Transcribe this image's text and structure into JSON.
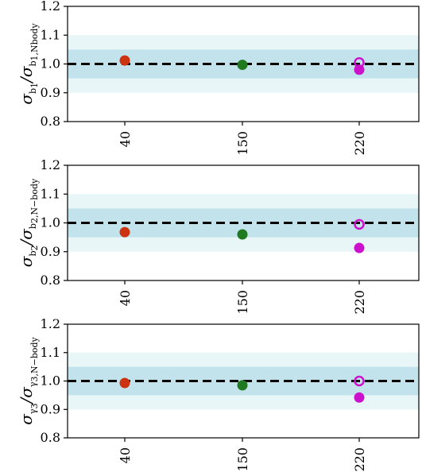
{
  "chart_data": [
    {
      "type": "scatter",
      "categories": [
        "40",
        "150",
        "220"
      ],
      "ylabel": {
        "num_sym": "σ",
        "num_sub": "b",
        "num_subsub": "1",
        "den_sym": "σ",
        "den_sub": "b",
        "den_subsub": "1,Nbody"
      },
      "ylim": [
        0.8,
        1.2
      ],
      "yticks": [
        "0.8",
        "0.9",
        "1.0",
        "1.1",
        "1.2"
      ],
      "points": [
        {
          "category": "40",
          "y": 1.012,
          "color": "#cc3311",
          "filled": true
        },
        {
          "category": "150",
          "y": 0.997,
          "color": "#1f7a1f",
          "filled": true
        },
        {
          "category": "220",
          "y": 1.005,
          "color": "#cc11cc",
          "filled": false
        },
        {
          "category": "220",
          "y": 0.98,
          "color": "#cc11cc",
          "filled": true
        }
      ],
      "reference_line": 1.0,
      "bands": [
        {
          "from": 0.9,
          "to": 1.1,
          "color": "#e8f6f8"
        },
        {
          "from": 0.95,
          "to": 1.05,
          "color": "#c2e3eb"
        }
      ]
    },
    {
      "type": "scatter",
      "categories": [
        "40",
        "150",
        "220"
      ],
      "ylabel": {
        "num_sym": "σ",
        "num_sub": "b",
        "num_subsub": "2",
        "den_sym": "σ",
        "den_sub": "b",
        "den_subsub": "2,N−body"
      },
      "ylim": [
        0.8,
        1.2
      ],
      "yticks": [
        "0.8",
        "0.9",
        "1.0",
        "1.1",
        "1.2"
      ],
      "points": [
        {
          "category": "40",
          "y": 0.968,
          "color": "#cc3311",
          "filled": true
        },
        {
          "category": "150",
          "y": 0.96,
          "color": "#1f7a1f",
          "filled": true
        },
        {
          "category": "220",
          "y": 0.995,
          "color": "#cc11cc",
          "filled": false
        },
        {
          "category": "220",
          "y": 0.913,
          "color": "#cc11cc",
          "filled": true
        }
      ],
      "reference_line": 1.0,
      "bands": [
        {
          "from": 0.9,
          "to": 1.1,
          "color": "#e8f6f8"
        },
        {
          "from": 0.95,
          "to": 1.05,
          "color": "#c2e3eb"
        }
      ]
    },
    {
      "type": "scatter",
      "categories": [
        "40",
        "150",
        "220"
      ],
      "ylabel": {
        "num_sym": "σ",
        "num_sub": "γ",
        "num_subsub": "3",
        "den_sym": "σ",
        "den_sub": "γ",
        "den_subsub": "3,N−body"
      },
      "ylim": [
        0.8,
        1.2
      ],
      "yticks": [
        "0.8",
        "0.9",
        "1.0",
        "1.1",
        "1.2"
      ],
      "points": [
        {
          "category": "40",
          "y": 0.993,
          "color": "#cc3311",
          "filled": true
        },
        {
          "category": "150",
          "y": 0.985,
          "color": "#1f7a1f",
          "filled": true
        },
        {
          "category": "220",
          "y": 1.0,
          "color": "#cc11cc",
          "filled": false
        },
        {
          "category": "220",
          "y": 0.942,
          "color": "#cc11cc",
          "filled": true
        }
      ],
      "reference_line": 1.0,
      "bands": [
        {
          "from": 0.9,
          "to": 1.1,
          "color": "#e8f6f8"
        },
        {
          "from": 0.95,
          "to": 1.05,
          "color": "#c2e3eb"
        }
      ]
    }
  ]
}
